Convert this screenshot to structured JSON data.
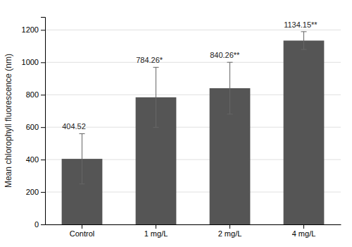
{
  "chart_data": {
    "type": "bar",
    "categories": [
      "Control",
      "1 mg/L",
      "2 mg/L",
      "4 mg/L"
    ],
    "values": [
      404.52,
      784.26,
      840.26,
      1134.15
    ],
    "errors": [
      155,
      185,
      160,
      55
    ],
    "value_labels": [
      "404.52",
      "784.26*",
      "840.26**",
      "1134.15**"
    ],
    "data_labels": true,
    "color": "#555555",
    "ylabel": "Mean chlorophyll fluorescence (nm)",
    "ylim": [
      0,
      1280
    ],
    "yticks": [
      0,
      200,
      400,
      600,
      800,
      1000,
      1200
    ],
    "grid": true
  }
}
